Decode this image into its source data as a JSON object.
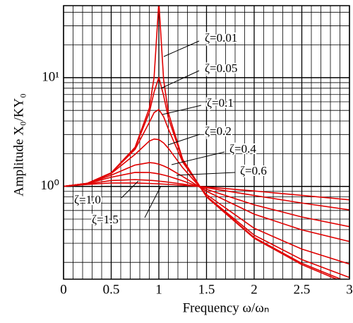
{
  "chart_data": {
    "type": "line",
    "log_y": true,
    "grid": true,
    "xlabel": "Frequency ω/ωₙ",
    "ylabel": "Amplitude X₀/KY₀",
    "xlim": [
      0,
      3
    ],
    "ylim": [
      0.14,
      46
    ],
    "xticks": [
      0,
      0.5,
      1,
      1.5,
      2,
      2.5,
      3
    ],
    "yticks": [
      {
        "value": 1,
        "label": "10⁰"
      },
      {
        "value": 10,
        "label": "10¹"
      }
    ],
    "x_minor_ticks": [
      0.1,
      0.2,
      0.3,
      0.4,
      0.6,
      0.7,
      0.8,
      0.9,
      1.1,
      1.2,
      1.3,
      1.4,
      1.6,
      1.7,
      1.8,
      1.9,
      2.1,
      2.2,
      2.3,
      2.4,
      2.6,
      2.7,
      2.8,
      2.9
    ],
    "y_minor_ticks": [
      0.2,
      0.3,
      0.4,
      0.5,
      0.6,
      0.7,
      0.8,
      0.9,
      2,
      3,
      4,
      5,
      6,
      7,
      8,
      9,
      20,
      30,
      40
    ],
    "x": [
      0,
      0.25,
      0.5,
      0.75,
      0.9,
      0.95,
      1,
      1.05,
      1.1,
      1.25,
      1.5,
      2,
      2.5,
      3
    ],
    "series": [
      {
        "name": "ζ=0.01",
        "color": "#e00000",
        "values": [
          1,
          1.067,
          1.333,
          2.286,
          5.24,
          10.07,
          50,
          9.56,
          4.74,
          1.778,
          0.8,
          0.333,
          0.1905,
          0.125
        ]
      },
      {
        "name": "ζ=0.05",
        "color": "#e00000",
        "values": [
          1,
          1.067,
          1.332,
          2.259,
          4.78,
          7.38,
          10.05,
          6.85,
          4.24,
          1.749,
          0.803,
          0.339,
          0.196,
          0.13
        ]
      },
      {
        "name": "ζ=0.1",
        "color": "#e00000",
        "values": [
          1,
          1.066,
          1.328,
          2.186,
          3.88,
          4.77,
          5.1,
          4.37,
          3.37,
          1.675,
          0.812,
          0.356,
          0.212,
          0.145
        ]
      },
      {
        "name": "ζ=0.2",
        "color": "#e00000",
        "values": [
          1,
          1.066,
          1.314,
          1.968,
          2.611,
          2.727,
          2.693,
          2.509,
          2.241,
          1.486,
          0.841,
          0.412,
          0.265,
          0.193
        ]
      },
      {
        "name": "ζ=0.4",
        "color": "#e00000",
        "values": [
          1,
          1.064,
          1.267,
          1.571,
          1.655,
          1.639,
          1.601,
          1.543,
          1.472,
          1.233,
          0.901,
          0.555,
          0.398,
          0.311
        ]
      },
      {
        "name": "ζ=0.6",
        "color": "#e00000",
        "values": [
          1,
          1.061,
          1.214,
          1.344,
          1.342,
          1.325,
          1.302,
          1.272,
          1.239,
          1.125,
          0.94,
          0.677,
          0.523,
          0.426
        ]
      },
      {
        "name": "ζ=1.0",
        "color": "#e00000",
        "values": [
          1,
          1.052,
          1.131,
          1.154,
          1.138,
          1.129,
          1.118,
          1.106,
          1.093,
          1.051,
          0.973,
          0.825,
          0.703,
          0.608
        ]
      },
      {
        "name": "ζ=1.5",
        "color": "#e00000",
        "values": [
          1,
          1.041,
          1.075,
          1.074,
          1.064,
          1.059,
          1.054,
          1.049,
          1.043,
          1.024,
          0.987,
          0.907,
          0.826,
          0.752
        ]
      }
    ]
  }
}
